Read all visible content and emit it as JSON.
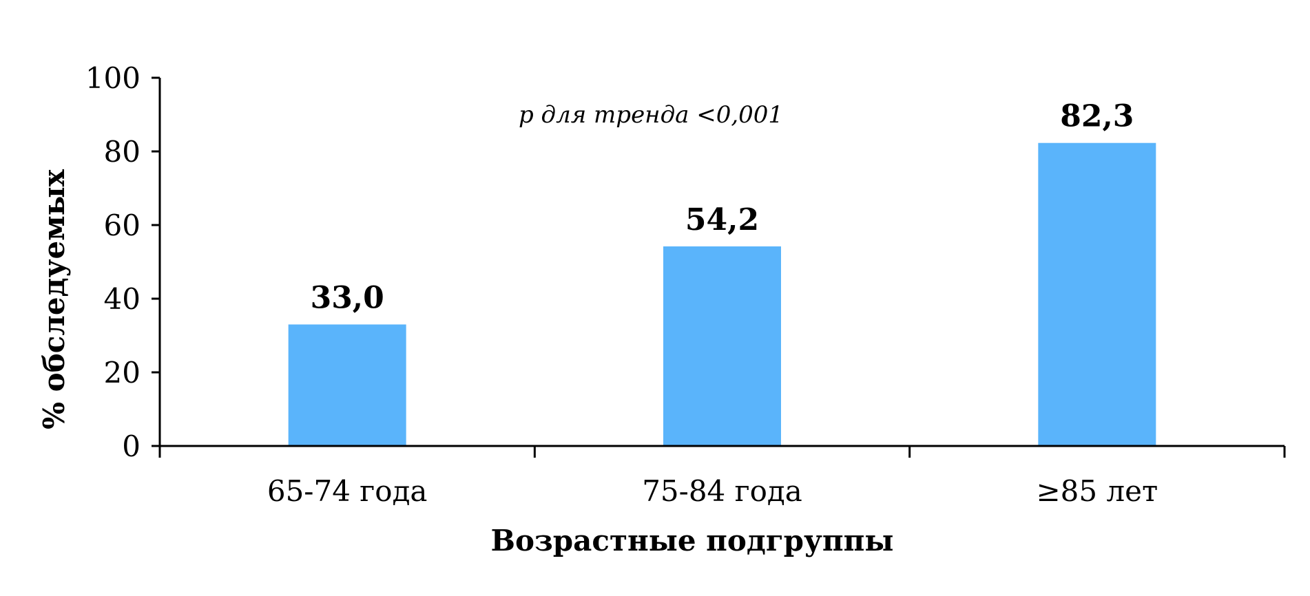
{
  "chart_data": {
    "type": "bar",
    "categories": [
      "65-74 года",
      "75-84 года",
      "≥85 лет"
    ],
    "values": [
      33.0,
      54.2,
      82.3
    ],
    "data_labels": [
      "33,0",
      "54,2",
      "82,3"
    ],
    "title": "",
    "xlabel": "Возрастные подгруппы",
    "ylabel": "% обследуемых",
    "ylim": [
      0,
      100
    ],
    "yticks": [
      0,
      20,
      40,
      60,
      80,
      100
    ],
    "annotation": "p для тренда <0,001",
    "grid": false,
    "legend": "none",
    "bar_color": "#5ab4fb",
    "axis_color": "#000000"
  }
}
